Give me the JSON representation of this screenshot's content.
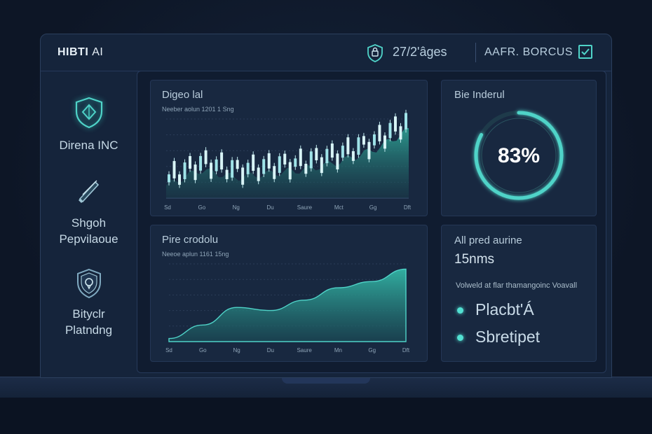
{
  "app": {
    "title_main": "HIBTI",
    "title_ai": "AI",
    "date": "27/2'âges",
    "user": "AAFR. BORCUS"
  },
  "sidebar": {
    "items": [
      {
        "label": [
          "Direna INC"
        ],
        "icon": "shield-diamond-icon"
      },
      {
        "label": [
          "Shgoh",
          "Pepvilaoue"
        ],
        "icon": "pen-icon"
      },
      {
        "label": [
          "Bityclr",
          "Platndng"
        ],
        "icon": "shield-lock-icon"
      }
    ]
  },
  "charts": {
    "top": {
      "title": "Digeo lal",
      "subtitle": "Neeber aolun 1201 1 Sng",
      "x_ticks": [
        "Sd",
        "Go",
        "Ng",
        "Du",
        "Saure",
        "Mct",
        "Gg",
        "Dft"
      ]
    },
    "bottom": {
      "title": "Pire crodolu",
      "subtitle": "Neeoe aplun 1161 15ng",
      "x_ticks": [
        "Sd",
        "Go",
        "Ng",
        "Du",
        "Saure",
        "Mn",
        "Gg",
        "Dft"
      ]
    }
  },
  "gauge": {
    "title": "Bie Inderul",
    "value_text": "83%",
    "value": 83,
    "accent": "#4fd3c8"
  },
  "stats": {
    "title": "All pred aurine",
    "value": "15nms",
    "note": "Volweld at flar thamangoinc Voavall",
    "legend": [
      "Placbt'Á",
      "Sbretipet"
    ]
  },
  "chart_data": [
    {
      "type": "candlestick",
      "title": "Digeo lal",
      "categories": [
        "Sd",
        "Go",
        "Ng",
        "Du",
        "Saure",
        "Mct",
        "Gg",
        "Dft"
      ],
      "close_trend": [
        2,
        4,
        3,
        3.5,
        4,
        5,
        6.5,
        9
      ]
    },
    {
      "type": "area",
      "title": "Pire crodolu",
      "categories": [
        "Sd",
        "Go",
        "Ng",
        "Du",
        "Saure",
        "Mn",
        "Gg",
        "Dft"
      ],
      "values": [
        0.3,
        1.6,
        3.3,
        3.0,
        4.0,
        5.2,
        5.8,
        7.0
      ]
    }
  ]
}
